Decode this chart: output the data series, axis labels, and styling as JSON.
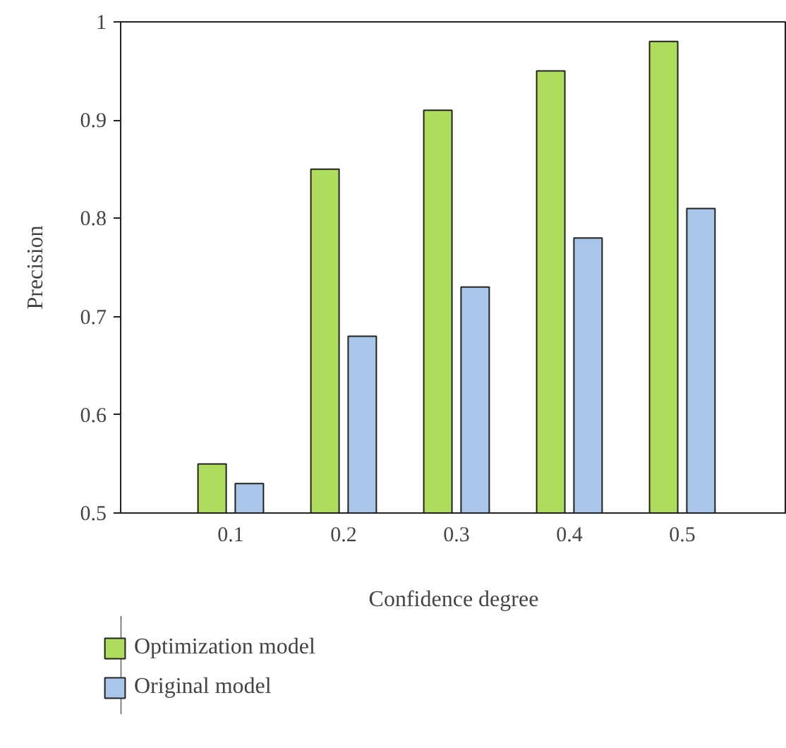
{
  "chart_data": {
    "type": "bar",
    "xlabel": "Confidence degree",
    "ylabel": "Precision",
    "categories": [
      "0.1",
      "0.2",
      "0.3",
      "0.4",
      "0.5"
    ],
    "series": [
      {
        "name": "Optimization model",
        "color": "#aedd5e",
        "values": [
          0.55,
          0.85,
          0.91,
          0.95,
          0.98
        ]
      },
      {
        "name": "Original model",
        "color": "#a9c5ea",
        "values": [
          0.53,
          0.68,
          0.73,
          0.78,
          0.81
        ]
      }
    ],
    "ylim": [
      0.5,
      1
    ],
    "yticks": [
      0.5,
      0.6,
      0.7,
      0.8,
      0.9,
      1
    ],
    "grid": false,
    "legend": "bottom"
  }
}
